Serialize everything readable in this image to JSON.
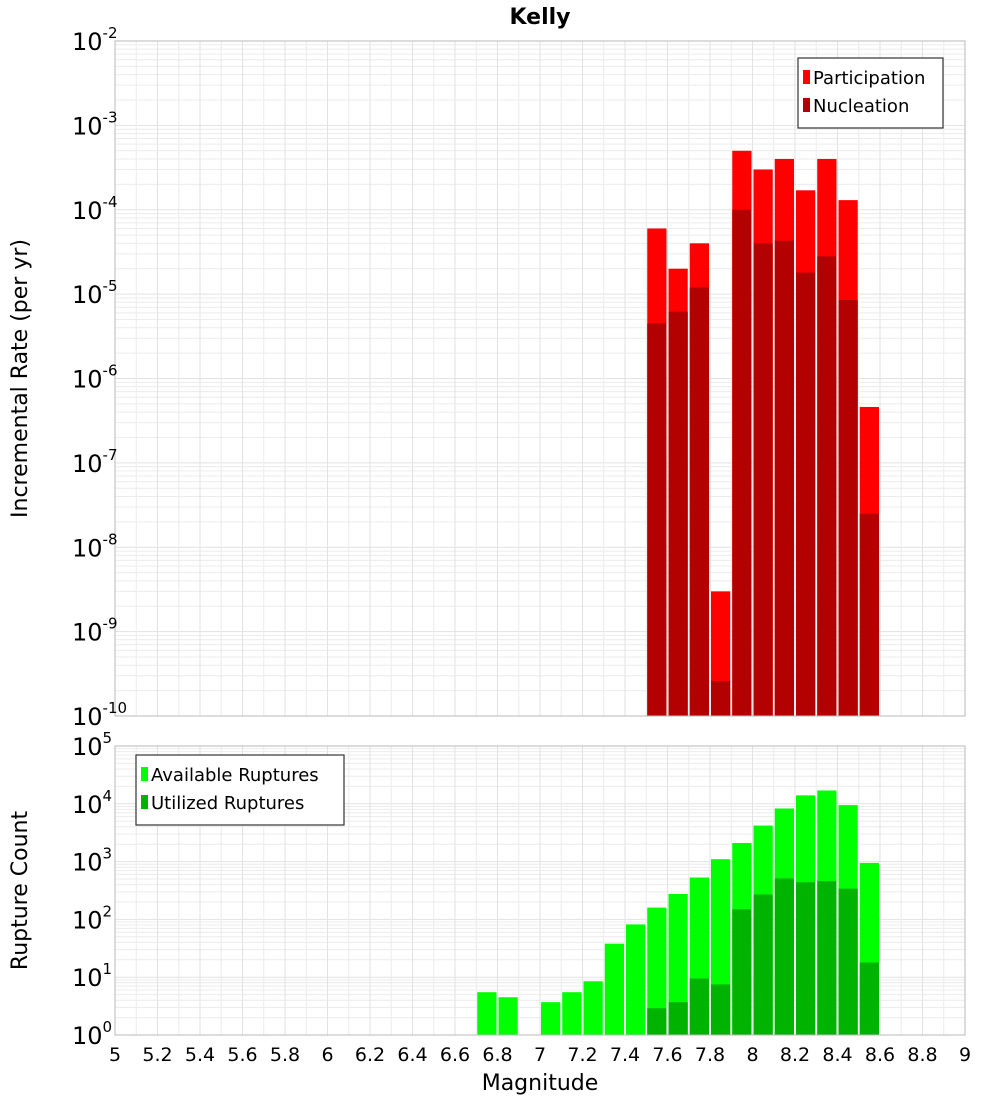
{
  "chart_data": [
    {
      "type": "bar",
      "title": "Kelly",
      "xlabel": "",
      "ylabel": "Incremental Rate (per yr)",
      "yscale": "log",
      "ylim": [
        1e-10,
        0.01
      ],
      "xlim": [
        5,
        9
      ],
      "grid": true,
      "legend_position": "top-right",
      "x": [
        7.55,
        7.65,
        7.75,
        7.85,
        7.95,
        8.05,
        8.15,
        8.25,
        8.35,
        8.45,
        8.55
      ],
      "series": [
        {
          "name": "Participation",
          "color": "#ff0000",
          "values": [
            6e-05,
            2e-05,
            4e-05,
            3e-09,
            0.0005,
            0.0003,
            0.0004,
            0.00017,
            0.0004,
            0.00013,
            4.6e-07
          ]
        },
        {
          "name": "Nucleation",
          "color": "#b30000",
          "values": [
            4.5e-06,
            6.2e-06,
            1.2e-05,
            2.6e-10,
            0.0001,
            4e-05,
            4.3e-05,
            1.8e-05,
            2.8e-05,
            8.5e-06,
            2.5e-08
          ]
        }
      ],
      "yticks": [
        {
          "base": "10",
          "exp": "-10"
        },
        {
          "base": "10",
          "exp": "-9"
        },
        {
          "base": "10",
          "exp": "-8"
        },
        {
          "base": "10",
          "exp": "-7"
        },
        {
          "base": "10",
          "exp": "-6"
        },
        {
          "base": "10",
          "exp": "-5"
        },
        {
          "base": "10",
          "exp": "-4"
        },
        {
          "base": "10",
          "exp": "-3"
        },
        {
          "base": "10",
          "exp": "-2"
        }
      ]
    },
    {
      "type": "bar",
      "title": "",
      "xlabel": "Magnitude",
      "ylabel": "Rupture Count",
      "yscale": "log",
      "ylim": [
        1,
        100000
      ],
      "xlim": [
        5,
        9
      ],
      "grid": true,
      "legend_position": "top-left",
      "x": [
        6.75,
        6.85,
        6.95,
        7.05,
        7.15,
        7.25,
        7.35,
        7.45,
        7.55,
        7.65,
        7.75,
        7.85,
        7.95,
        8.05,
        8.15,
        8.25,
        8.35,
        8.45,
        8.55
      ],
      "series": [
        {
          "name": "Available Ruptures",
          "color": "#00ff00",
          "values": [
            5.5,
            4.5,
            0,
            3.7,
            5.5,
            8.5,
            38,
            82,
            160,
            275,
            530,
            1100,
            2100,
            4200,
            8300,
            14000,
            17000,
            9500,
            950
          ]
        },
        {
          "name": "Utilized Ruptures",
          "color": "#00b300",
          "values": [
            0,
            0,
            0,
            0,
            0,
            0,
            0,
            0,
            2.9,
            3.7,
            9.5,
            7.5,
            150,
            270,
            510,
            440,
            460,
            340,
            18
          ]
        }
      ],
      "yticks": [
        {
          "base": "10",
          "exp": "0"
        },
        {
          "base": "10",
          "exp": "1"
        },
        {
          "base": "10",
          "exp": "2"
        },
        {
          "base": "10",
          "exp": "3"
        },
        {
          "base": "10",
          "exp": "4"
        },
        {
          "base": "10",
          "exp": "5"
        }
      ],
      "xticks": [
        "5",
        "5.2",
        "5.4",
        "5.6",
        "5.8",
        "6",
        "6.2",
        "6.4",
        "6.6",
        "6.8",
        "7",
        "7.2",
        "7.4",
        "7.6",
        "7.8",
        "8",
        "8.2",
        "8.4",
        "8.6",
        "8.8",
        "9"
      ]
    }
  ]
}
